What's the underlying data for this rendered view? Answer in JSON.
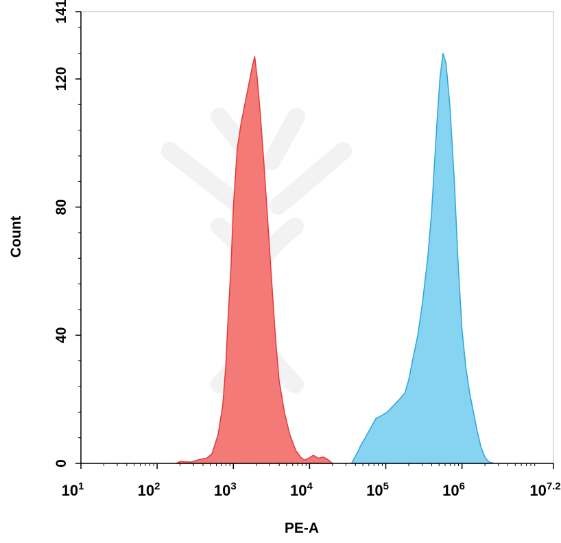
{
  "chart_data": {
    "type": "area",
    "xlabel": "PE-A",
    "ylabel": "Count",
    "x_scale": "log",
    "xlim": [
      1,
      7.2
    ],
    "ylim": [
      0,
      141
    ],
    "x_ticks": [
      {
        "base": "10",
        "exp": "1",
        "value": 1
      },
      {
        "base": "10",
        "exp": "2",
        "value": 2
      },
      {
        "base": "10",
        "exp": "3",
        "value": 3
      },
      {
        "base": "10",
        "exp": "4",
        "value": 4
      },
      {
        "base": "10",
        "exp": "5",
        "value": 5
      },
      {
        "base": "10",
        "exp": "6",
        "value": 6
      },
      {
        "base": "10",
        "exp": "7.2",
        "value": 7.2
      }
    ],
    "y_ticks": [
      "0",
      "40",
      "80",
      "120",
      "141"
    ],
    "y_tick_values": [
      0,
      40,
      80,
      120,
      141
    ],
    "grid": false,
    "legend": "none",
    "series": [
      {
        "color": "#f47a78",
        "edge": "#e0393a",
        "points": [
          [
            2.25,
            0
          ],
          [
            2.3,
            0.6
          ],
          [
            2.45,
            0.4
          ],
          [
            2.55,
            1.2
          ],
          [
            2.65,
            1.6
          ],
          [
            2.72,
            3
          ],
          [
            2.8,
            9
          ],
          [
            2.86,
            18
          ],
          [
            2.9,
            30
          ],
          [
            2.93,
            45
          ],
          [
            2.97,
            62
          ],
          [
            3.0,
            80
          ],
          [
            3.05,
            98
          ],
          [
            3.1,
            106
          ],
          [
            3.15,
            112
          ],
          [
            3.2,
            118
          ],
          [
            3.25,
            124
          ],
          [
            3.28,
            127
          ],
          [
            3.31,
            121
          ],
          [
            3.35,
            110
          ],
          [
            3.4,
            94
          ],
          [
            3.45,
            76
          ],
          [
            3.5,
            58
          ],
          [
            3.55,
            40
          ],
          [
            3.6,
            26
          ],
          [
            3.67,
            16
          ],
          [
            3.74,
            9
          ],
          [
            3.82,
            4
          ],
          [
            3.88,
            2
          ],
          [
            3.93,
            1
          ],
          [
            3.98,
            1.5
          ],
          [
            4.05,
            2.5
          ],
          [
            4.12,
            1.6
          ],
          [
            4.18,
            2
          ],
          [
            4.25,
            1
          ],
          [
            4.3,
            0
          ]
        ]
      },
      {
        "color": "#86d3f2",
        "edge": "#2aa6d8",
        "points": [
          [
            4.55,
            0
          ],
          [
            4.62,
            3
          ],
          [
            4.68,
            6
          ],
          [
            4.73,
            8
          ],
          [
            4.8,
            11
          ],
          [
            4.87,
            14
          ],
          [
            4.95,
            15
          ],
          [
            5.02,
            16
          ],
          [
            5.1,
            18
          ],
          [
            5.18,
            20
          ],
          [
            5.25,
            22
          ],
          [
            5.3,
            26
          ],
          [
            5.35,
            32
          ],
          [
            5.42,
            40
          ],
          [
            5.48,
            50
          ],
          [
            5.55,
            64
          ],
          [
            5.6,
            78
          ],
          [
            5.63,
            90
          ],
          [
            5.67,
            106
          ],
          [
            5.71,
            120
          ],
          [
            5.75,
            128
          ],
          [
            5.79,
            125
          ],
          [
            5.84,
            112
          ],
          [
            5.9,
            88
          ],
          [
            5.95,
            62
          ],
          [
            6.0,
            42
          ],
          [
            6.05,
            30
          ],
          [
            6.1,
            22
          ],
          [
            6.15,
            16
          ],
          [
            6.2,
            10
          ],
          [
            6.25,
            5
          ],
          [
            6.3,
            2
          ],
          [
            6.35,
            0.5
          ],
          [
            6.42,
            0
          ]
        ]
      }
    ]
  }
}
